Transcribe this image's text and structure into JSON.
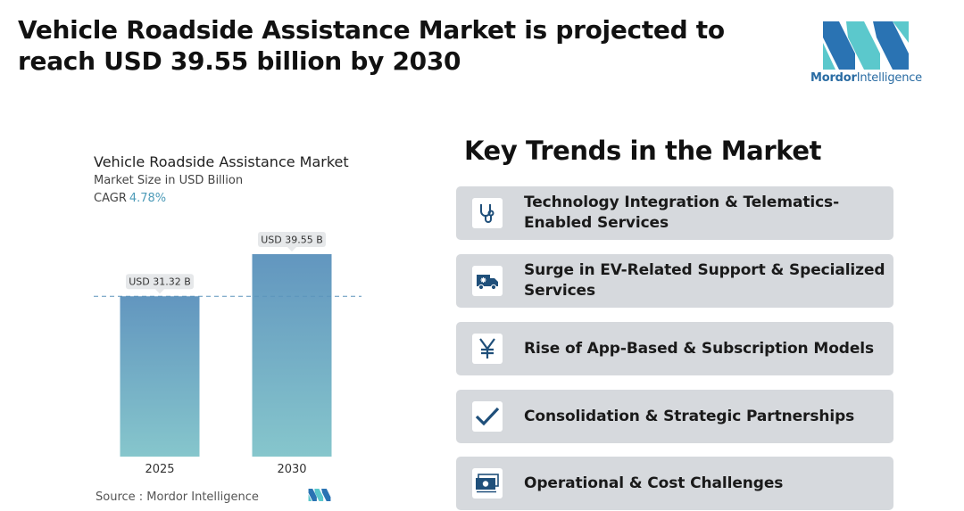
{
  "headline": "Vehicle Roadside Assistance Market is projected to reach USD 39.55 billion by 2030",
  "brand": {
    "name_bold": "Mordor",
    "name_regular": "Intelligence",
    "colors": {
      "dark": "#2a73b3",
      "light": "#5bc8cc"
    }
  },
  "chart": {
    "title": "Vehicle Roadside Assistance Market",
    "subtitle": "Market Size in USD Billion",
    "cagr_label": "CAGR",
    "cagr_value": "4.78%",
    "source": "Source :  Mordor Intelligence"
  },
  "chart_data": {
    "type": "bar",
    "categories": [
      "2025",
      "2030"
    ],
    "values": [
      31.32,
      39.55
    ],
    "data_labels": [
      "USD 31.32 B",
      "USD 39.55 B"
    ],
    "ylim": [
      0,
      39.55
    ],
    "reference_line": 31.32,
    "bar_gradient": {
      "top": "#6296bf",
      "bottom": "#86c6cc"
    }
  },
  "trends": {
    "title": "Key Trends in the Market",
    "items": [
      {
        "label": "Technology Integration & Telematics-Enabled Services",
        "icon": "stethoscope-icon"
      },
      {
        "label": "Surge in EV-Related Support & Specialized Services",
        "icon": "ambulance-icon"
      },
      {
        "label": "Rise of App-Based & Subscription Models",
        "icon": "yen-icon"
      },
      {
        "label": "Consolidation & Strategic Partnerships",
        "icon": "checkmark-icon"
      },
      {
        "label": "Operational & Cost Challenges",
        "icon": "money-icon"
      }
    ]
  }
}
